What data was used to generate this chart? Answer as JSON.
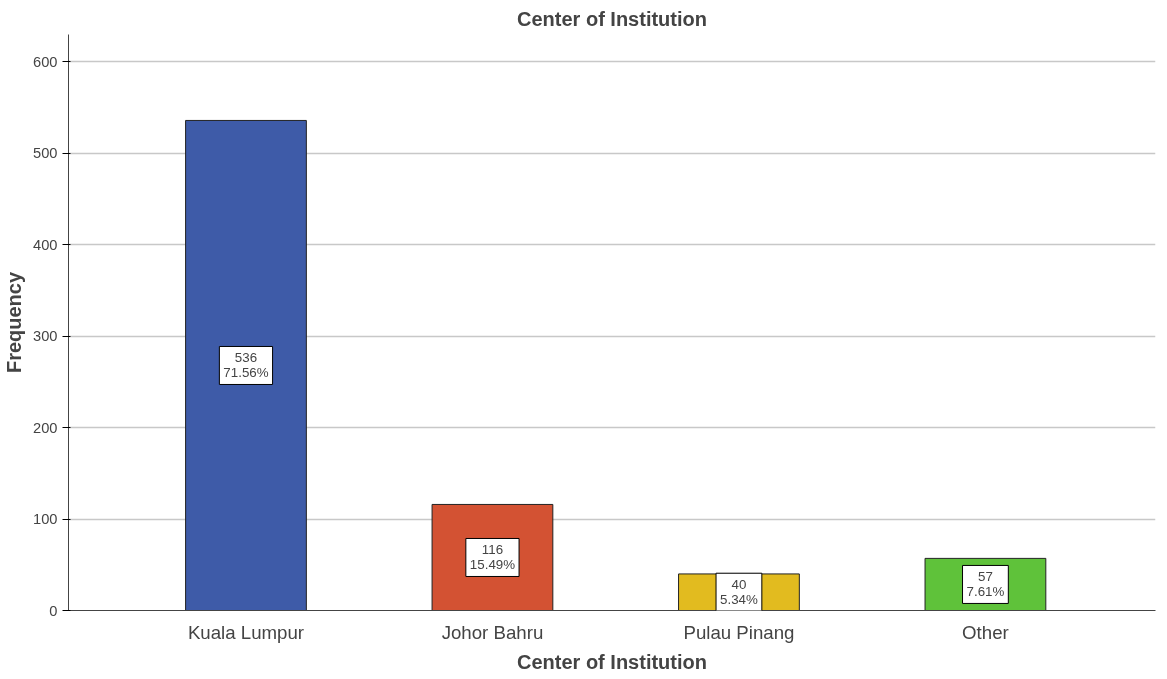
{
  "chart_data": {
    "type": "bar",
    "title": "Center of Institution",
    "xlabel": "Center of Institution",
    "ylabel": "Frequency",
    "categories": [
      "Kuala Lumpur",
      "Johor Bahru",
      "Pulau Pinang",
      "Other"
    ],
    "values": [
      536,
      116,
      40,
      57
    ],
    "colors": [
      "#3e5ba8",
      "#d35233",
      "#e2bb1f",
      "#5fc23a"
    ],
    "value_labels": [
      "536\n71.56%",
      "116\n15.49%",
      "40\n5.34%",
      "57\n7.61%"
    ],
    "ylim": [
      0,
      630
    ],
    "yticks": [
      0,
      100,
      200,
      300,
      400,
      500,
      600
    ],
    "grid": "y"
  }
}
